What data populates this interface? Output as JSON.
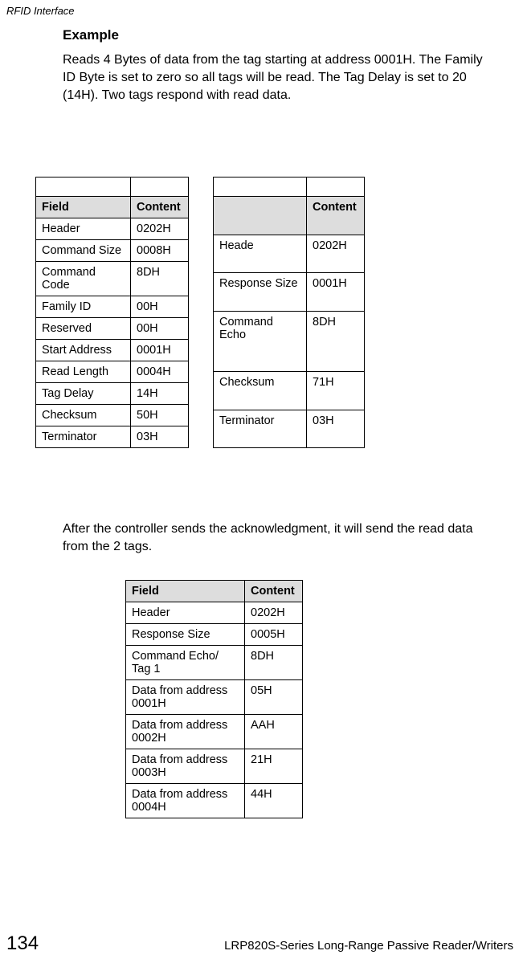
{
  "running_head": "RFID Interface",
  "example_heading": "Example",
  "para1": "Reads 4 Bytes of data from the tag starting at address 0001H. The Family ID Byte is set to zero so all tags will be read. The Tag Delay is set to 20 (14H). Two tags respond with read data.",
  "para2": "After the controller sends the acknowledgment, it will send the read data from the 2 tags.",
  "table1": {
    "header": [
      "Field",
      "Content"
    ],
    "rows": [
      [
        "Header",
        "0202H"
      ],
      [
        "Command Size",
        "0008H"
      ],
      [
        "Command Code",
        "8DH"
      ],
      [
        "Family ID",
        "00H"
      ],
      [
        "Reserved",
        "00H"
      ],
      [
        "Start Address",
        "0001H"
      ],
      [
        "Read Length",
        "0004H"
      ],
      [
        "Tag Delay",
        "14H"
      ],
      [
        "Checksum",
        "50H"
      ],
      [
        "Terminator",
        "03H"
      ]
    ]
  },
  "table2": {
    "header": [
      "",
      "Content"
    ],
    "rows": [
      [
        "Heade",
        "0202H"
      ],
      [
        "Response Size",
        "0001H"
      ],
      [
        "Command Echo",
        "8DH"
      ],
      [
        "Checksum",
        "71H"
      ],
      [
        "Terminator",
        "03H"
      ]
    ]
  },
  "table3": {
    "header": [
      "Field",
      "Content"
    ],
    "rows": [
      [
        "Header",
        "0202H"
      ],
      [
        "Response Size",
        "0005H"
      ],
      [
        "Command Echo/\nTag 1",
        "8DH"
      ],
      [
        "Data from address 0001H",
        "05H"
      ],
      [
        "Data from address 0002H",
        "AAH"
      ],
      [
        "Data from address 0003H",
        "21H"
      ],
      [
        "Data from address 0004H",
        "44H"
      ]
    ]
  },
  "footer": {
    "page_num": "134",
    "title": "LRP820S-Series Long-Range Passive Reader/Writers"
  },
  "colors": {
    "header_bg": "#dddddd",
    "border": "#000000",
    "text": "#000000",
    "page_bg": "#ffffff"
  },
  "fonts": {
    "body_size_pt": 12,
    "heading_size_pt": 13,
    "running_head_italic": true,
    "page_num_size_pt": 18
  }
}
